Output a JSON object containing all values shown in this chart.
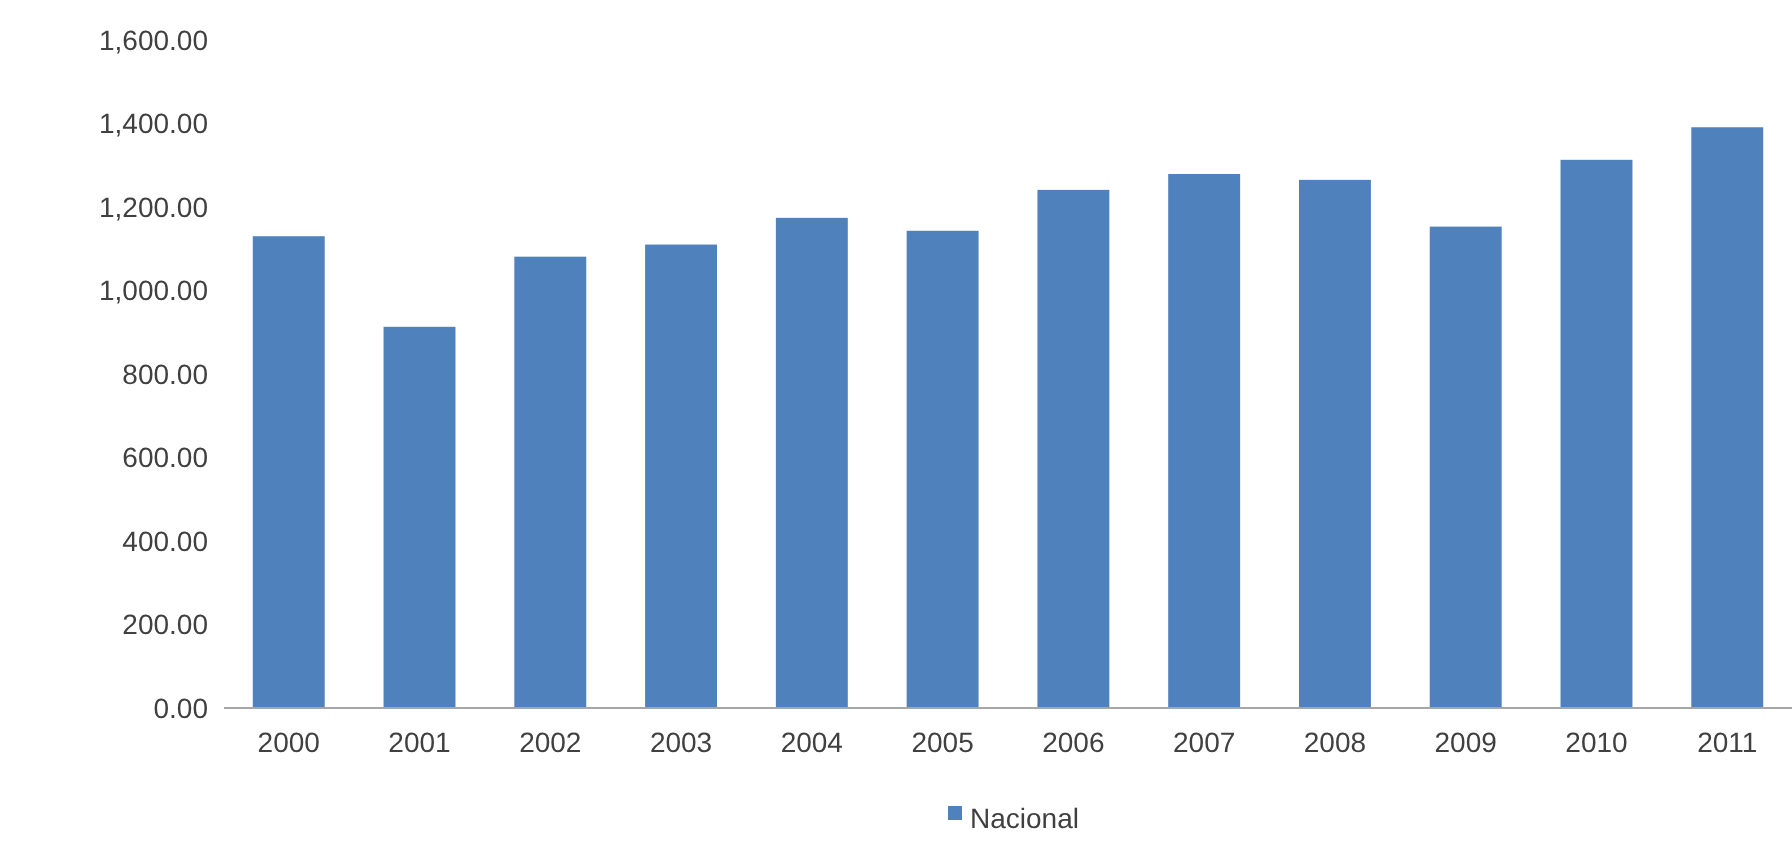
{
  "chart_data": {
    "type": "bar",
    "categories": [
      "2000",
      "2001",
      "2002",
      "2003",
      "2004",
      "2005",
      "2006",
      "2007",
      "2008",
      "2009",
      "2010",
      "2011"
    ],
    "series": [
      {
        "name": "Nacional",
        "color": "#4f81bd",
        "values": [
          1130,
          913,
          1081,
          1110,
          1174,
          1143,
          1241,
          1279,
          1265,
          1153,
          1313,
          1391
        ]
      }
    ],
    "ylim": [
      0,
      1600
    ],
    "yticks": [
      {
        "value": 0,
        "label": "0.00"
      },
      {
        "value": 200,
        "label": "200.00"
      },
      {
        "value": 400,
        "label": "400.00"
      },
      {
        "value": 600,
        "label": "600.00"
      },
      {
        "value": 800,
        "label": "800.00"
      },
      {
        "value": 1000,
        "label": "1,000.00"
      },
      {
        "value": 1200,
        "label": "1,200.00"
      },
      {
        "value": 1400,
        "label": "1,400.00"
      },
      {
        "value": 1600,
        "label": "1,600.00"
      }
    ],
    "legend": "bottom"
  }
}
